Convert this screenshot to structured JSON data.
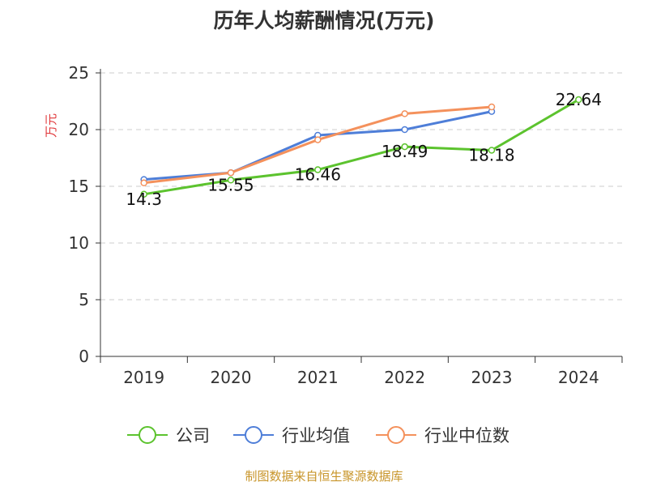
{
  "source": "制图数据来自恒生聚源数据库",
  "colors": {
    "company": "#5cc32e",
    "industry_avg": "#4e7ed8",
    "industry_median": "#f4915c",
    "ylabel": "#e0383b",
    "grid": "#cccccc",
    "axis": "#333333"
  },
  "chart_data": {
    "type": "line",
    "title": "历年人均薪酬情况(万元)",
    "xlabel": "",
    "ylabel": "万元",
    "ylim": [
      0,
      25
    ],
    "yticks": [
      0,
      5,
      10,
      15,
      20,
      25
    ],
    "categories": [
      "2019",
      "2020",
      "2021",
      "2022",
      "2023",
      "2024"
    ],
    "grid": true,
    "legend_position": "bottom-center",
    "series": [
      {
        "name": "公司",
        "values": [
          14.3,
          15.55,
          16.46,
          18.49,
          18.18,
          22.64
        ],
        "labels": [
          "14.3",
          "15.55",
          "16.46",
          "18.49",
          "18.18",
          "22.64"
        ]
      },
      {
        "name": "行业均值",
        "values": [
          15.6,
          16.2,
          19.5,
          20.0,
          21.6,
          null
        ]
      },
      {
        "name": "行业中位数",
        "values": [
          15.3,
          16.2,
          19.1,
          21.4,
          22.0,
          null
        ]
      }
    ]
  }
}
